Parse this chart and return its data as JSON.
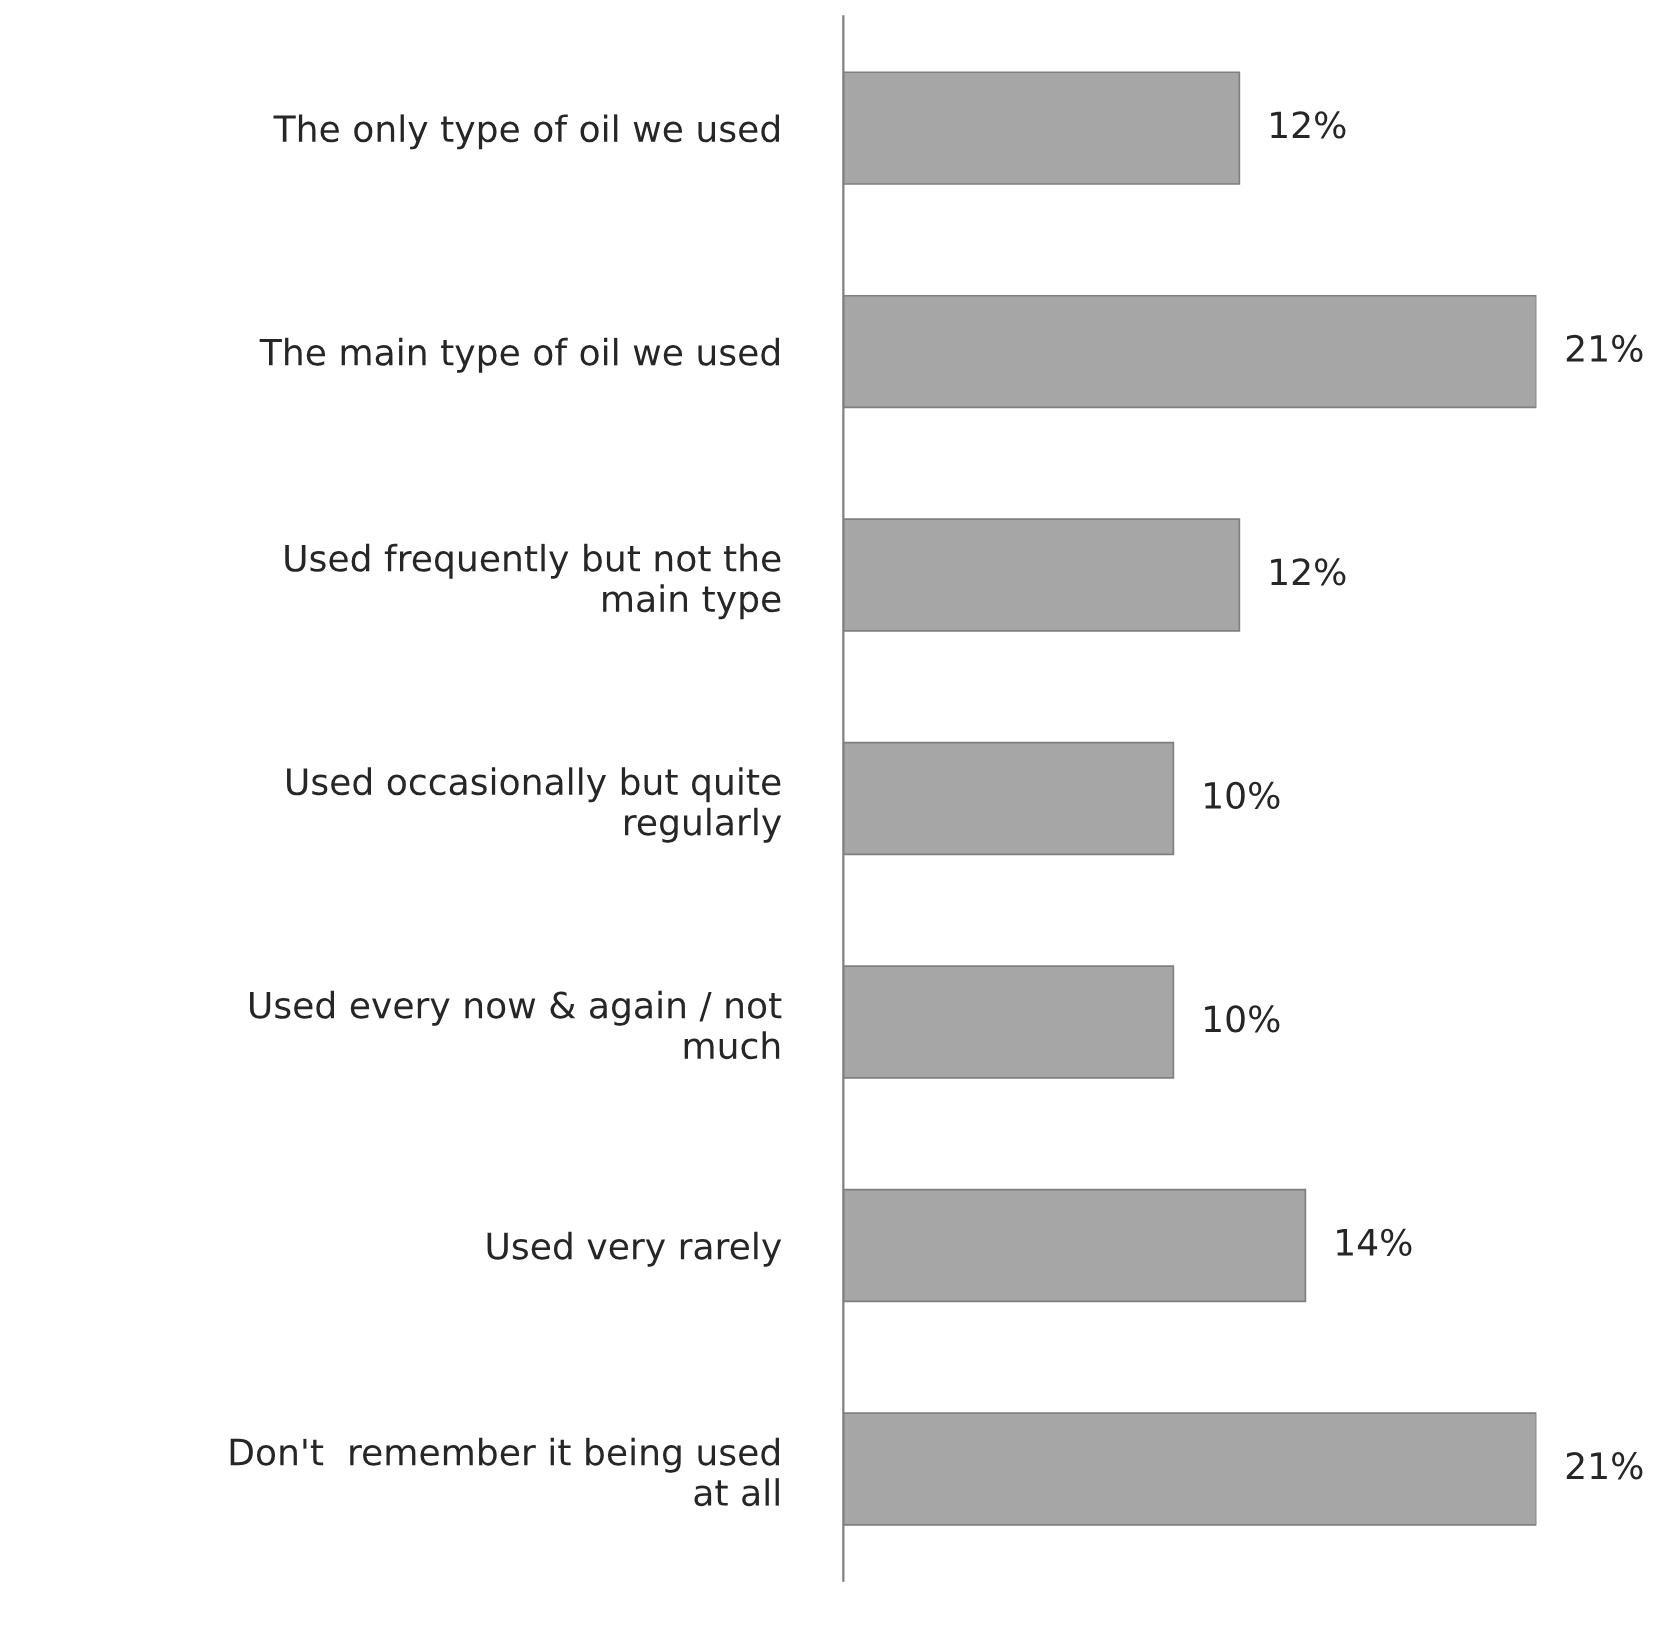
{
  "chart_data": {
    "type": "bar",
    "orientation": "horizontal",
    "categories": [
      "The only type of oil we used",
      "The main type of oil we used",
      "Used frequently but not the main type",
      "Used occasionally but quite regularly",
      "Used every now & again / not much",
      "Used very rarely",
      "Don't  remember it being used at all"
    ],
    "values": [
      12,
      21,
      12,
      10,
      10,
      14,
      21
    ],
    "value_labels": [
      "12%",
      "21%",
      "12%",
      "10%",
      "10%",
      "14%",
      "21%"
    ],
    "color": "#a6a6a6",
    "grid": false,
    "legend": false
  }
}
